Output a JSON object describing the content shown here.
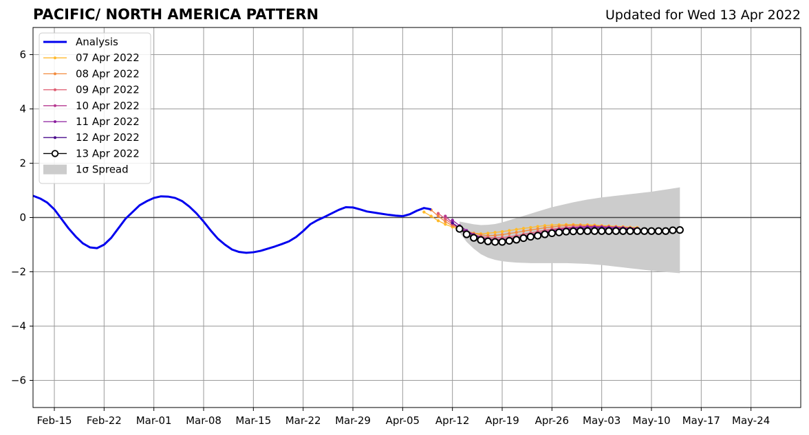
{
  "chart_data": {
    "type": "line",
    "title": "PACIFIC/ NORTH AMERICA PATTERN",
    "subtitle": "Updated for Wed 13 Apr 2022",
    "xlabel": "",
    "ylabel": "",
    "xlim": [
      "2022-02-12",
      "2022-05-31"
    ],
    "ylim": [
      -7,
      7
    ],
    "grid": true,
    "legend_position": "upper-left",
    "x_tick_labels": [
      "Feb-15",
      "Feb-22",
      "Mar-01",
      "Mar-08",
      "Mar-15",
      "Mar-22",
      "Mar-29",
      "Apr-05",
      "Apr-12",
      "Apr-19",
      "Apr-26",
      "May-03",
      "May-10",
      "May-17",
      "May-24"
    ],
    "x_tick_dates": [
      "2022-02-15",
      "2022-02-22",
      "2022-03-01",
      "2022-03-08",
      "2022-03-15",
      "2022-03-22",
      "2022-03-29",
      "2022-04-05",
      "2022-04-12",
      "2022-04-19",
      "2022-04-26",
      "2022-05-03",
      "2022-05-10",
      "2022-05-17",
      "2022-05-24"
    ],
    "y_ticks": [
      6,
      4,
      2,
      0,
      -2,
      -4,
      -6
    ],
    "y_tick_labels": [
      "6",
      "4",
      "2",
      "0",
      "−2",
      "−4",
      "−6"
    ],
    "analysis": {
      "name": "Analysis",
      "color": "#0000ee",
      "dates": [
        "2022-02-12",
        "2022-02-13",
        "2022-02-14",
        "2022-02-15",
        "2022-02-16",
        "2022-02-17",
        "2022-02-18",
        "2022-02-19",
        "2022-02-20",
        "2022-02-21",
        "2022-02-22",
        "2022-02-23",
        "2022-02-24",
        "2022-02-25",
        "2022-02-26",
        "2022-02-27",
        "2022-02-28",
        "2022-03-01",
        "2022-03-02",
        "2022-03-03",
        "2022-03-04",
        "2022-03-05",
        "2022-03-06",
        "2022-03-07",
        "2022-03-08",
        "2022-03-09",
        "2022-03-10",
        "2022-03-11",
        "2022-03-12",
        "2022-03-13",
        "2022-03-14",
        "2022-03-15",
        "2022-03-16",
        "2022-03-17",
        "2022-03-18",
        "2022-03-19",
        "2022-03-20",
        "2022-03-21",
        "2022-03-22",
        "2022-03-23",
        "2022-03-24",
        "2022-03-25",
        "2022-03-26",
        "2022-03-27",
        "2022-03-28",
        "2022-03-29",
        "2022-03-30",
        "2022-03-31",
        "2022-04-01",
        "2022-04-02",
        "2022-04-03",
        "2022-04-04",
        "2022-04-05",
        "2022-04-06",
        "2022-04-07",
        "2022-04-08",
        "2022-04-09"
      ],
      "values": [
        0.8,
        0.7,
        0.55,
        0.3,
        -0.05,
        -0.4,
        -0.7,
        -0.95,
        -1.1,
        -1.13,
        -1.0,
        -0.75,
        -0.4,
        -0.05,
        0.2,
        0.45,
        0.6,
        0.72,
        0.78,
        0.77,
        0.72,
        0.6,
        0.4,
        0.15,
        -0.15,
        -0.48,
        -0.78,
        -1.0,
        -1.18,
        -1.27,
        -1.3,
        -1.28,
        -1.23,
        -1.15,
        -1.07,
        -0.98,
        -0.88,
        -0.72,
        -0.5,
        -0.25,
        -0.1,
        0.02,
        0.15,
        0.28,
        0.38,
        0.37,
        0.3,
        0.22,
        0.18,
        0.14,
        0.1,
        0.07,
        0.05,
        0.12,
        0.25,
        0.35,
        0.3
      ]
    },
    "forecast_dates": [
      "2022-04-13",
      "2022-04-14",
      "2022-04-15",
      "2022-04-16",
      "2022-04-17",
      "2022-04-18",
      "2022-04-19",
      "2022-04-20",
      "2022-04-21",
      "2022-04-22",
      "2022-04-23",
      "2022-04-24",
      "2022-04-25",
      "2022-04-26",
      "2022-04-27",
      "2022-04-28",
      "2022-04-29",
      "2022-04-30",
      "2022-05-01",
      "2022-05-02",
      "2022-05-03",
      "2022-05-04",
      "2022-05-05",
      "2022-05-06",
      "2022-05-07",
      "2022-05-08",
      "2022-05-09",
      "2022-05-10",
      "2022-05-11",
      "2022-05-12",
      "2022-05-13",
      "2022-05-14"
    ],
    "series": [
      {
        "name": "07 Apr 2022",
        "color": "#ffba2b",
        "start": "2022-04-08",
        "values": [
          0.2,
          0.05,
          -0.12,
          -0.25,
          -0.35,
          -0.45,
          -0.52,
          -0.58,
          -0.6,
          -0.58,
          -0.55,
          -0.52,
          -0.48,
          -0.44,
          -0.4,
          -0.37,
          -0.33,
          -0.3,
          -0.28,
          -0.27,
          -0.26,
          -0.26,
          -0.27,
          -0.27,
          -0.28,
          -0.3,
          -0.31,
          -0.33,
          -0.34,
          -0.36,
          -0.37
        ]
      },
      {
        "name": "08 Apr 2022",
        "color": "#f28a3c",
        "start": "2022-04-09",
        "values": [
          0.28,
          0.05,
          -0.15,
          -0.3,
          -0.4,
          -0.5,
          -0.58,
          -0.64,
          -0.67,
          -0.66,
          -0.63,
          -0.59,
          -0.55,
          -0.5,
          -0.46,
          -0.42,
          -0.38,
          -0.35,
          -0.32,
          -0.3,
          -0.29,
          -0.29,
          -0.3,
          -0.31,
          -0.32,
          -0.33,
          -0.34,
          -0.36,
          -0.38,
          -0.4
        ]
      },
      {
        "name": "09 Apr 2022",
        "color": "#df5a70",
        "start": "2022-04-10",
        "values": [
          0.15,
          -0.05,
          -0.25,
          -0.42,
          -0.55,
          -0.64,
          -0.7,
          -0.74,
          -0.75,
          -0.74,
          -0.71,
          -0.67,
          -0.62,
          -0.57,
          -0.52,
          -0.47,
          -0.43,
          -0.4,
          -0.37,
          -0.35,
          -0.34,
          -0.33,
          -0.33,
          -0.34,
          -0.35,
          -0.36,
          -0.37,
          -0.39,
          -0.4
        ]
      },
      {
        "name": "10 Apr 2022",
        "color": "#b6378f",
        "start": "2022-04-11",
        "values": [
          0.05,
          -0.2,
          -0.4,
          -0.55,
          -0.66,
          -0.74,
          -0.79,
          -0.81,
          -0.8,
          -0.77,
          -0.73,
          -0.68,
          -0.62,
          -0.57,
          -0.52,
          -0.47,
          -0.43,
          -0.4,
          -0.37,
          -0.35,
          -0.34,
          -0.34,
          -0.35,
          -0.36,
          -0.37,
          -0.38,
          -0.39,
          -0.4
        ]
      },
      {
        "name": "11 Apr 2022",
        "color": "#8a1c9e",
        "start": "2022-04-12",
        "values": [
          -0.1,
          -0.3,
          -0.48,
          -0.63,
          -0.74,
          -0.81,
          -0.84,
          -0.84,
          -0.82,
          -0.78,
          -0.73,
          -0.67,
          -0.61,
          -0.55,
          -0.5,
          -0.45,
          -0.42,
          -0.39,
          -0.37,
          -0.35,
          -0.35,
          -0.35,
          -0.36,
          -0.37,
          -0.38,
          -0.4,
          -0.41
        ]
      },
      {
        "name": "12 Apr 2022",
        "color": "#4a0c8c",
        "start": "2022-04-12",
        "values": [
          -0.2,
          -0.38,
          -0.53,
          -0.66,
          -0.76,
          -0.83,
          -0.87,
          -0.88,
          -0.86,
          -0.82,
          -0.77,
          -0.71,
          -0.65,
          -0.59,
          -0.54,
          -0.5,
          -0.46,
          -0.43,
          -0.41,
          -0.4,
          -0.39,
          -0.39,
          -0.4,
          -0.41,
          -0.42,
          -0.43,
          -0.44,
          -0.45
        ]
      },
      {
        "name": "13 Apr 2022",
        "color": "#000000",
        "start": "2022-04-13",
        "values": [
          -0.42,
          -0.62,
          -0.75,
          -0.83,
          -0.88,
          -0.9,
          -0.9,
          -0.86,
          -0.82,
          -0.76,
          -0.71,
          -0.67,
          -0.62,
          -0.58,
          -0.55,
          -0.52,
          -0.51,
          -0.5,
          -0.5,
          -0.5,
          -0.5,
          -0.5,
          -0.5,
          -0.5,
          -0.5,
          -0.5,
          -0.5,
          -0.5,
          -0.5,
          -0.5,
          -0.47,
          -0.46
        ]
      }
    ],
    "spread": {
      "name": "1σ Spread",
      "color": "#cccccc",
      "upper": [
        -0.15,
        -0.2,
        -0.25,
        -0.28,
        -0.27,
        -0.24,
        -0.18,
        -0.1,
        -0.02,
        0.06,
        0.14,
        0.22,
        0.3,
        0.38,
        0.44,
        0.5,
        0.56,
        0.61,
        0.66,
        0.7,
        0.74,
        0.77,
        0.8,
        0.83,
        0.86,
        0.89,
        0.92,
        0.95,
        0.99,
        1.03,
        1.07,
        1.11
      ],
      "lower": [
        -0.55,
        -0.9,
        -1.15,
        -1.35,
        -1.48,
        -1.56,
        -1.61,
        -1.64,
        -1.66,
        -1.67,
        -1.68,
        -1.68,
        -1.68,
        -1.68,
        -1.68,
        -1.68,
        -1.69,
        -1.7,
        -1.71,
        -1.73,
        -1.75,
        -1.78,
        -1.81,
        -1.84,
        -1.87,
        -1.9,
        -1.93,
        -1.96,
        -1.99,
        -2.01,
        -2.03,
        -2.05
      ]
    },
    "legend": [
      {
        "label": "Analysis",
        "style": "thick-line",
        "color": "#0000ee"
      },
      {
        "label": "07 Apr 2022",
        "style": "dot-line",
        "color": "#ffba2b"
      },
      {
        "label": "08 Apr 2022",
        "style": "dot-line",
        "color": "#f28a3c"
      },
      {
        "label": "09 Apr 2022",
        "style": "dot-line",
        "color": "#df5a70"
      },
      {
        "label": "10 Apr 2022",
        "style": "dot-line",
        "color": "#b6378f"
      },
      {
        "label": "11 Apr 2022",
        "style": "dot-line",
        "color": "#8a1c9e"
      },
      {
        "label": "12 Apr 2022",
        "style": "dot-line",
        "color": "#4a0c8c"
      },
      {
        "label": "13 Apr 2022",
        "style": "circle-line",
        "color": "#000000"
      },
      {
        "label": "1σ Spread",
        "style": "patch",
        "color": "#cccccc"
      }
    ]
  }
}
